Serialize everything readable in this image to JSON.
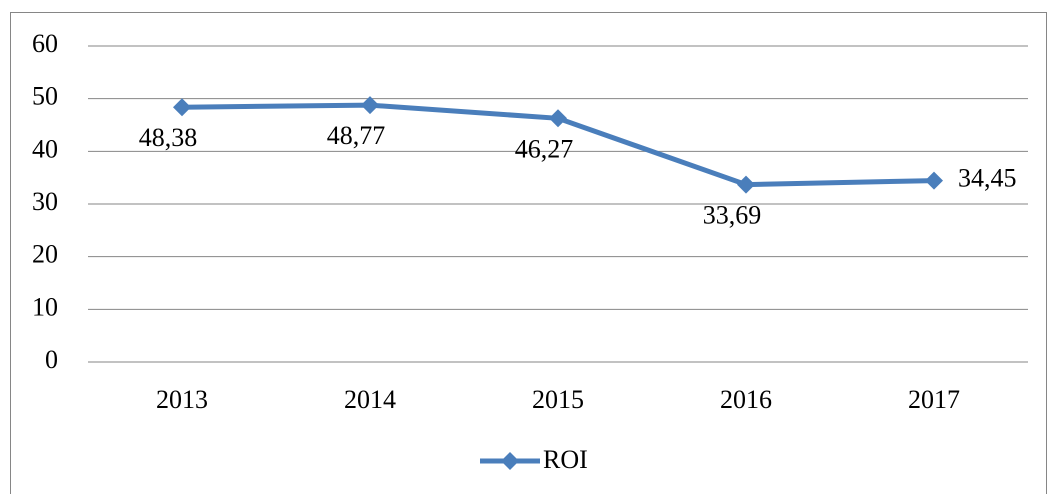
{
  "chart_data": {
    "type": "line",
    "categories": [
      "2013",
      "2014",
      "2015",
      "2016",
      "2017"
    ],
    "series": [
      {
        "name": "ROI",
        "color": "#4a7ebb",
        "values": [
          48.38,
          48.77,
          46.27,
          33.69,
          34.45
        ],
        "value_labels": [
          "48,38",
          "48,77",
          "46,27",
          "33,69",
          "34,45"
        ]
      }
    ],
    "ylim": [
      0,
      60
    ],
    "yticks": [
      0,
      10,
      20,
      30,
      40,
      50,
      60
    ],
    "grid": true,
    "legend": "bottom"
  }
}
